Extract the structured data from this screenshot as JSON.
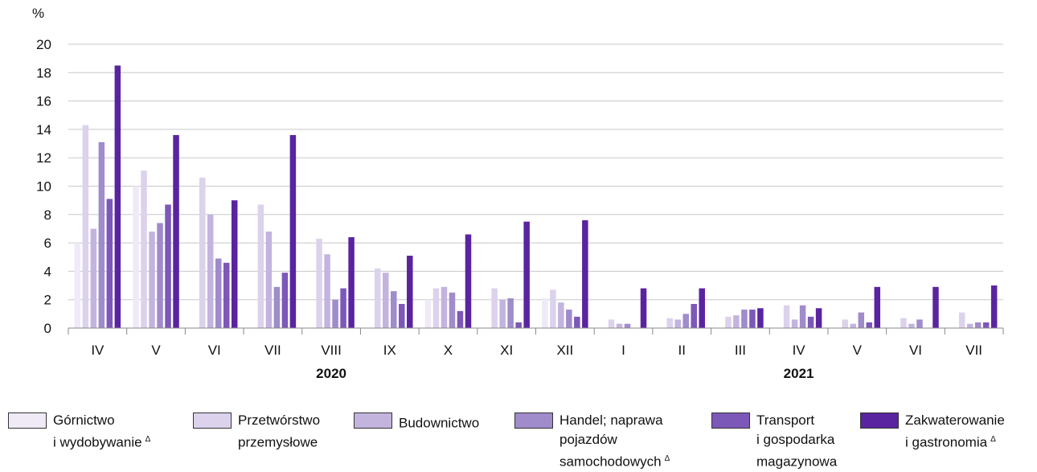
{
  "chart_data": {
    "type": "bar",
    "ylabel": "%",
    "ylim": [
      0,
      20
    ],
    "yticks": [
      0,
      2,
      4,
      6,
      8,
      10,
      12,
      14,
      16,
      18,
      20
    ],
    "grid": true,
    "legend_position": "bottom",
    "categories": [
      "IV",
      "V",
      "VI",
      "VII",
      "VIII",
      "IX",
      "X",
      "XI",
      "XII",
      "I",
      "II",
      "III",
      "IV",
      "V",
      "VI",
      "VII"
    ],
    "years": [
      {
        "label": "2020",
        "span": [
          0,
          8
        ]
      },
      {
        "label": "2021",
        "span": [
          9,
          15
        ]
      }
    ],
    "series": [
      {
        "name": "Górnictwo\ni wydobywanie",
        "mark": "Δ",
        "color": "#efeaf6",
        "values": [
          6.0,
          10.0,
          0.0,
          0.0,
          0.0,
          0.0,
          2.0,
          0.0,
          2.1,
          0.0,
          0.0,
          0.0,
          0.0,
          0.0,
          0.0,
          0.0
        ]
      },
      {
        "name": "Przetwórstwo\nprzemysłowe",
        "mark": "",
        "color": "#dcd2ec",
        "values": [
          14.3,
          11.1,
          10.6,
          8.7,
          6.3,
          4.2,
          2.8,
          2.8,
          2.7,
          0.6,
          0.7,
          0.8,
          1.6,
          0.6,
          0.7,
          1.1
        ]
      },
      {
        "name": "Budownictwo",
        "mark": "",
        "color": "#c3b4de",
        "values": [
          7.0,
          6.8,
          8.0,
          6.8,
          5.2,
          3.9,
          2.9,
          2.0,
          1.8,
          0.3,
          0.6,
          0.9,
          0.6,
          0.3,
          0.3,
          0.3
        ]
      },
      {
        "name": "Handel; naprawa\npojazdów\nsamochodowych",
        "mark": "Δ",
        "color": "#a08bcb",
        "values": [
          13.1,
          7.4,
          4.9,
          2.9,
          2.0,
          2.6,
          2.5,
          2.1,
          1.3,
          0.3,
          1.0,
          1.3,
          1.6,
          1.1,
          0.6,
          0.4
        ]
      },
      {
        "name": "Transport\ni gospodarka\nmagazynowa",
        "mark": "",
        "color": "#7c58b8",
        "values": [
          9.1,
          8.7,
          4.6,
          3.9,
          2.8,
          1.7,
          1.2,
          0.4,
          0.8,
          0.0,
          1.7,
          1.3,
          0.8,
          0.4,
          0.0,
          0.4
        ]
      },
      {
        "name": "Zakwaterowanie\ni gastronomia",
        "mark": "Δ",
        "color": "#5a24a0",
        "values": [
          18.5,
          13.6,
          9.0,
          13.6,
          6.4,
          5.1,
          6.6,
          7.5,
          7.6,
          2.8,
          2.8,
          1.4,
          1.4,
          2.9,
          2.9,
          3.0
        ]
      }
    ]
  }
}
